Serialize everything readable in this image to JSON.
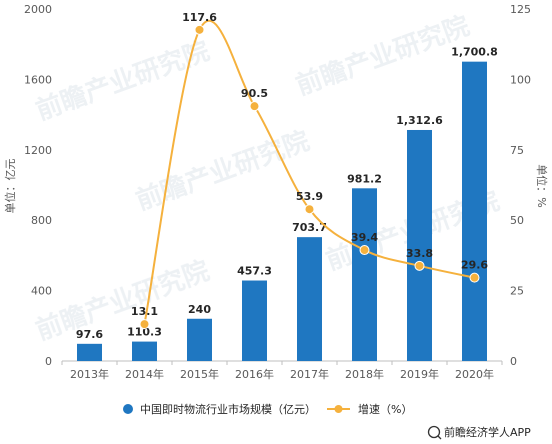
{
  "chart_data": {
    "type": "bar",
    "categories": [
      "2013年",
      "2014年",
      "2015年",
      "2016年",
      "2017年",
      "2018年",
      "2019年",
      "2020年"
    ],
    "series": [
      {
        "name": "中国即时物流行业市场规模（亿元）",
        "type": "bar",
        "axis": "left",
        "values": [
          97.6,
          110.3,
          240,
          457.3,
          703.7,
          981.2,
          1312.6,
          1700.8
        ],
        "labels": [
          "97.6",
          "110.3",
          "240",
          "457.3",
          "703.7",
          "981.2",
          "1,312.6",
          "1,700.8"
        ]
      },
      {
        "name": "增速（%）",
        "type": "line",
        "axis": "right",
        "values": [
          null,
          13.1,
          117.6,
          90.5,
          53.9,
          39.4,
          33.8,
          29.6
        ],
        "labels": [
          "",
          "13.1",
          "117.6",
          "90.5",
          "53.9",
          "39.4",
          "33.8",
          "29.6"
        ]
      }
    ],
    "ylabel": "单位：亿元",
    "y2label": "单位：%",
    "ylim": [
      0,
      2000
    ],
    "y2lim": [
      0,
      125
    ],
    "yticks": [
      "0",
      "400",
      "800",
      "1200",
      "1600",
      "2000"
    ],
    "y2ticks": [
      "0",
      "25",
      "50",
      "75",
      "100",
      "125"
    ],
    "grid": false,
    "legend_position": "bottom",
    "colors": {
      "bar": "#1f77c1",
      "line": "#f5b13d"
    }
  },
  "source": "前瞻经济学人APP",
  "watermark": "前瞻产业研究院"
}
